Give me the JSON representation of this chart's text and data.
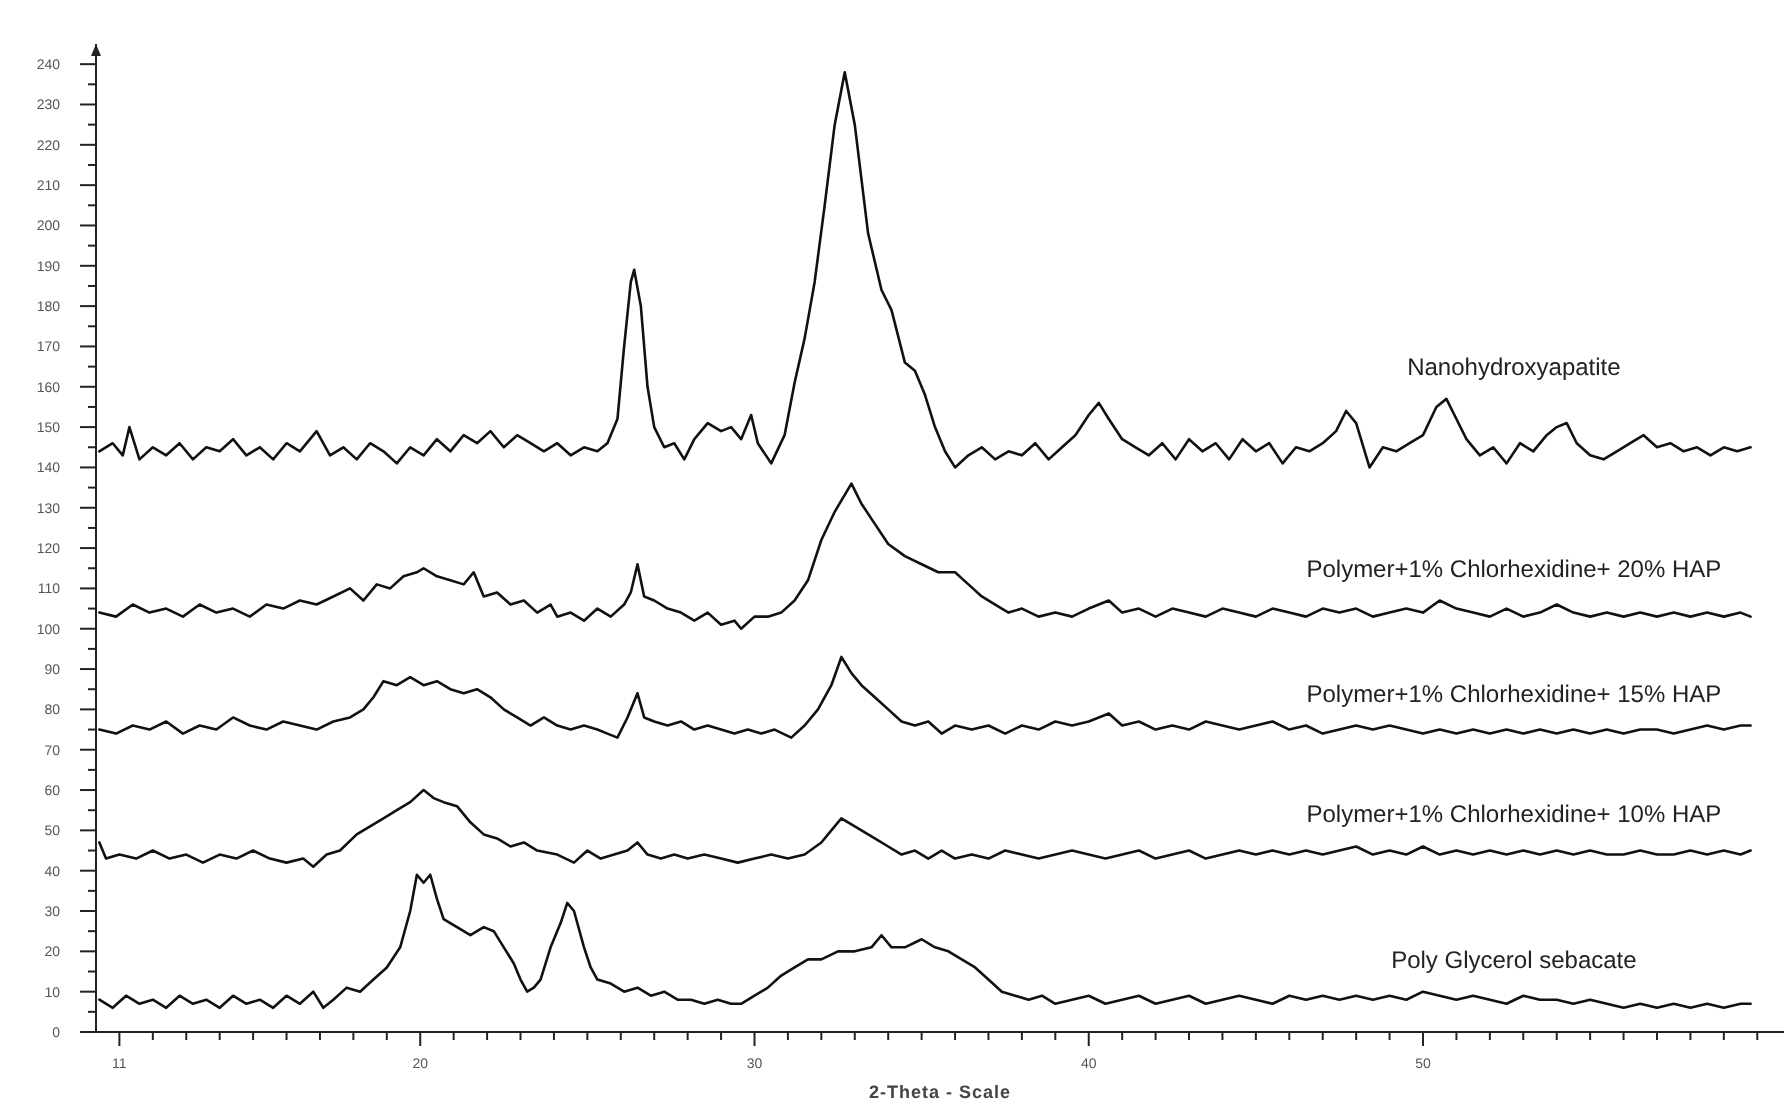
{
  "chart_data": {
    "type": "line",
    "xlabel": "2-Theta - Scale",
    "xlim": [
      10.3,
      60.8
    ],
    "ylim": [
      0,
      245
    ],
    "grid": false,
    "legend": false,
    "marker": "none",
    "line_style": "solid",
    "xticks": [
      11,
      {
        "value": 12,
        "label": null
      },
      {
        "value": 13,
        "label": null
      },
      {
        "value": 14,
        "label": null
      },
      {
        "value": 15,
        "label": null
      },
      {
        "value": 16,
        "label": null
      },
      {
        "value": 17,
        "label": null
      },
      {
        "value": 18,
        "label": null
      },
      {
        "value": 19,
        "label": null
      },
      20,
      {
        "value": 21,
        "label": null
      },
      {
        "value": 22,
        "label": null
      },
      {
        "value": 23,
        "label": null
      },
      {
        "value": 24,
        "label": null
      },
      {
        "value": 25,
        "label": null
      },
      {
        "value": 26,
        "label": null
      },
      {
        "value": 27,
        "label": null
      },
      {
        "value": 28,
        "label": null
      },
      {
        "value": 29,
        "label": null
      },
      30,
      {
        "value": 31,
        "label": null
      },
      {
        "value": 32,
        "label": null
      },
      {
        "value": 33,
        "label": null
      },
      {
        "value": 34,
        "label": null
      },
      {
        "value": 35,
        "label": null
      },
      {
        "value": 36,
        "label": null
      },
      {
        "value": 37,
        "label": null
      },
      {
        "value": 38,
        "label": null
      },
      {
        "value": 39,
        "label": null
      },
      40,
      {
        "value": 41,
        "label": null
      },
      {
        "value": 42,
        "label": null
      },
      {
        "value": 43,
        "label": null
      },
      {
        "value": 44,
        "label": null
      },
      {
        "value": 45,
        "label": null
      },
      {
        "value": 46,
        "label": null
      },
      {
        "value": 47,
        "label": null
      },
      {
        "value": 48,
        "label": null
      },
      {
        "value": 49,
        "label": null
      },
      50,
      {
        "value": 51,
        "label": null
      },
      {
        "value": 52,
        "label": null
      },
      {
        "value": 53,
        "label": null
      },
      {
        "value": 54,
        "label": null
      },
      {
        "value": 55,
        "label": null
      },
      {
        "value": 56,
        "label": null
      },
      {
        "value": 57,
        "label": null
      },
      {
        "value": 58,
        "label": null
      },
      {
        "value": 59,
        "label": null
      },
      {
        "value": 60,
        "label": null
      }
    ],
    "yticks": [
      0,
      {
        "value": 5,
        "label": null
      },
      10,
      {
        "value": 15,
        "label": null
      },
      20,
      {
        "value": 25,
        "label": null
      },
      30,
      {
        "value": 35,
        "label": null
      },
      40,
      {
        "value": 45,
        "label": null
      },
      50,
      {
        "value": 55,
        "label": null
      },
      60,
      {
        "value": 65,
        "label": null
      },
      70,
      {
        "value": 75,
        "label": null
      },
      80,
      {
        "value": 85,
        "label": null
      },
      90,
      {
        "value": 95,
        "label": null
      },
      100,
      {
        "value": 105,
        "label": null
      },
      110,
      {
        "value": 115,
        "label": null
      },
      120,
      {
        "value": 125,
        "label": null
      },
      130,
      {
        "value": 135,
        "label": null
      },
      140,
      {
        "value": 145,
        "label": null
      },
      150,
      {
        "value": 155,
        "label": null
      },
      160,
      {
        "value": 165,
        "label": null
      },
      170,
      {
        "value": 175,
        "label": null
      },
      180,
      {
        "value": 185,
        "label": null
      },
      190,
      {
        "value": 195,
        "label": null
      },
      200,
      {
        "value": 205,
        "label": null
      },
      210,
      {
        "value": 215,
        "label": null
      },
      220,
      {
        "value": 225,
        "label": null
      },
      230,
      {
        "value": 235,
        "label": null
      },
      240
    ],
    "series": [
      {
        "name": "Nanohydroxyapatite",
        "color": "#111111",
        "x": [
          10.4,
          10.8,
          11.1,
          11.3,
          11.6,
          12.0,
          12.4,
          12.8,
          13.2,
          13.6,
          14.0,
          14.4,
          14.8,
          15.2,
          15.6,
          16.0,
          16.4,
          16.9,
          17.3,
          17.7,
          18.1,
          18.5,
          18.9,
          19.3,
          19.7,
          20.1,
          20.5,
          20.9,
          21.3,
          21.7,
          22.1,
          22.5,
          22.9,
          23.3,
          23.7,
          24.1,
          24.5,
          24.9,
          25.3,
          25.6,
          25.9,
          26.1,
          26.3,
          26.4,
          26.6,
          26.8,
          27.0,
          27.3,
          27.6,
          27.9,
          28.2,
          28.6,
          29.0,
          29.3,
          29.6,
          29.9,
          30.1,
          30.5,
          30.9,
          31.2,
          31.5,
          31.8,
          32.1,
          32.4,
          32.7,
          33.0,
          33.4,
          33.8,
          34.1,
          34.5,
          34.8,
          35.1,
          35.4,
          35.7,
          36.0,
          36.4,
          36.8,
          37.2,
          37.6,
          38.0,
          38.4,
          38.8,
          39.2,
          39.6,
          40.0,
          40.3,
          40.6,
          41.0,
          41.4,
          41.8,
          42.2,
          42.6,
          43.0,
          43.4,
          43.8,
          44.2,
          44.6,
          45.0,
          45.4,
          45.8,
          46.2,
          46.6,
          47.0,
          47.4,
          47.7,
          48.0,
          48.4,
          48.8,
          49.2,
          49.6,
          50.0,
          50.4,
          50.7,
          51.0,
          51.3,
          51.7,
          52.1,
          52.5,
          52.9,
          53.3,
          53.7,
          54.0,
          54.3,
          54.6,
          55.0,
          55.4,
          55.8,
          56.2,
          56.6,
          57.0,
          57.4,
          57.8,
          58.2,
          58.6,
          59.0,
          59.4,
          59.8
        ],
        "values": [
          144,
          146,
          143,
          150,
          142,
          145,
          143,
          146,
          142,
          145,
          144,
          147,
          143,
          145,
          142,
          146,
          144,
          149,
          143,
          145,
          142,
          146,
          144,
          141,
          145,
          143,
          147,
          144,
          148,
          146,
          149,
          145,
          148,
          146,
          144,
          146,
          143,
          145,
          144,
          146,
          152,
          170,
          186,
          189,
          180,
          160,
          150,
          145,
          146,
          142,
          147,
          151,
          149,
          150,
          147,
          153,
          146,
          141,
          148,
          161,
          172,
          186,
          205,
          225,
          238,
          225,
          198,
          184,
          179,
          166,
          164,
          158,
          150,
          144,
          140,
          143,
          145,
          142,
          144,
          143,
          146,
          142,
          145,
          148,
          153,
          156,
          152,
          147,
          145,
          143,
          146,
          142,
          147,
          144,
          146,
          142,
          147,
          144,
          146,
          141,
          145,
          144,
          146,
          149,
          154,
          151,
          140,
          145,
          144,
          146,
          148,
          155,
          157,
          152,
          147,
          143,
          145,
          141,
          146,
          144,
          148,
          150,
          151,
          146,
          143,
          142,
          144,
          146,
          148,
          145,
          146,
          144,
          145,
          143,
          145,
          144,
          145
        ]
      },
      {
        "name": "Polymer+1% Chlorhexidine+ 20% HAP",
        "color": "#111111",
        "x": [
          10.4,
          10.9,
          11.4,
          11.9,
          12.4,
          12.9,
          13.4,
          13.9,
          14.4,
          14.9,
          15.4,
          15.9,
          16.4,
          16.9,
          17.4,
          17.9,
          18.3,
          18.7,
          19.1,
          19.5,
          19.9,
          20.1,
          20.5,
          20.9,
          21.3,
          21.6,
          21.9,
          22.3,
          22.7,
          23.1,
          23.5,
          23.9,
          24.1,
          24.5,
          24.9,
          25.3,
          25.7,
          26.1,
          26.3,
          26.5,
          26.7,
          27.0,
          27.4,
          27.8,
          28.2,
          28.6,
          29.0,
          29.4,
          29.6,
          30.0,
          30.4,
          30.8,
          31.2,
          31.6,
          32.0,
          32.4,
          32.9,
          33.2,
          33.6,
          34.0,
          34.5,
          35.0,
          35.5,
          36.0,
          36.4,
          36.8,
          37.2,
          37.6,
          38.0,
          38.5,
          39.0,
          39.5,
          40.0,
          40.6,
          41.0,
          41.5,
          42.0,
          42.5,
          43.0,
          43.5,
          44.0,
          44.5,
          45.0,
          45.5,
          46.0,
          46.5,
          47.0,
          47.5,
          48.0,
          48.5,
          49.0,
          49.5,
          50.0,
          50.5,
          51.0,
          51.5,
          52.0,
          52.5,
          53.0,
          53.5,
          54.0,
          54.5,
          55.0,
          55.5,
          56.0,
          56.5,
          57.0,
          57.5,
          58.0,
          58.5,
          59.0,
          59.5,
          59.8
        ],
        "values": [
          104,
          103,
          106,
          104,
          105,
          103,
          106,
          104,
          105,
          103,
          106,
          105,
          107,
          106,
          108,
          110,
          107,
          111,
          110,
          113,
          114,
          115,
          113,
          112,
          111,
          114,
          108,
          109,
          106,
          107,
          104,
          106,
          103,
          104,
          102,
          105,
          103,
          106,
          109,
          116,
          108,
          107,
          105,
          104,
          102,
          104,
          101,
          102,
          100,
          103,
          103,
          104,
          107,
          112,
          122,
          129,
          136,
          131,
          126,
          121,
          118,
          116,
          114,
          114,
          111,
          108,
          106,
          104,
          105,
          103,
          104,
          103,
          105,
          107,
          104,
          105,
          103,
          105,
          104,
          103,
          105,
          104,
          103,
          105,
          104,
          103,
          105,
          104,
          105,
          103,
          104,
          105,
          104,
          107,
          105,
          104,
          103,
          105,
          103,
          104,
          106,
          104,
          103,
          104,
          103,
          104,
          103,
          104,
          103,
          104,
          103,
          104,
          103
        ]
      },
      {
        "name": "Polymer+1% Chlorhexidine+ 15% HAP",
        "color": "#111111",
        "x": [
          10.4,
          10.9,
          11.4,
          11.9,
          12.4,
          12.9,
          13.4,
          13.9,
          14.4,
          14.9,
          15.4,
          15.9,
          16.4,
          16.9,
          17.4,
          17.9,
          18.3,
          18.6,
          18.9,
          19.3,
          19.7,
          20.1,
          20.5,
          20.9,
          21.3,
          21.7,
          22.1,
          22.5,
          22.9,
          23.3,
          23.7,
          24.1,
          24.5,
          24.9,
          25.3,
          25.6,
          25.9,
          26.2,
          26.5,
          26.7,
          27.0,
          27.4,
          27.8,
          28.2,
          28.6,
          29.0,
          29.4,
          29.8,
          30.2,
          30.6,
          31.1,
          31.5,
          31.9,
          32.3,
          32.6,
          32.9,
          33.2,
          33.6,
          34.0,
          34.4,
          34.8,
          35.2,
          35.6,
          36.0,
          36.5,
          37.0,
          37.5,
          38.0,
          38.5,
          39.0,
          39.5,
          40.0,
          40.6,
          41.0,
          41.5,
          42.0,
          42.5,
          43.0,
          43.5,
          44.0,
          44.5,
          45.0,
          45.5,
          46.0,
          46.5,
          47.0,
          47.5,
          48.0,
          48.5,
          49.0,
          49.5,
          50.0,
          50.5,
          51.0,
          51.5,
          52.0,
          52.5,
          53.0,
          53.5,
          54.0,
          54.5,
          55.0,
          55.5,
          56.0,
          56.5,
          57.0,
          57.5,
          58.0,
          58.5,
          59.0,
          59.5,
          59.8
        ],
        "values": [
          75,
          74,
          76,
          75,
          77,
          74,
          76,
          75,
          78,
          76,
          75,
          77,
          76,
          75,
          77,
          78,
          80,
          83,
          87,
          86,
          88,
          86,
          87,
          85,
          84,
          85,
          83,
          80,
          78,
          76,
          78,
          76,
          75,
          76,
          75,
          74,
          73,
          78,
          84,
          78,
          77,
          76,
          77,
          75,
          76,
          75,
          74,
          75,
          74,
          75,
          73,
          76,
          80,
          86,
          93,
          89,
          86,
          83,
          80,
          77,
          76,
          77,
          74,
          76,
          75,
          76,
          74,
          76,
          75,
          77,
          76,
          77,
          79,
          76,
          77,
          75,
          76,
          75,
          77,
          76,
          75,
          76,
          77,
          75,
          76,
          74,
          75,
          76,
          75,
          76,
          75,
          74,
          75,
          74,
          75,
          74,
          75,
          74,
          75,
          74,
          75,
          74,
          75,
          74,
          75,
          75,
          74,
          75,
          76,
          75,
          76,
          76
        ]
      },
      {
        "name": "Polymer+1% Chlorhexidine+ 10% HAP",
        "color": "#111111",
        "x": [
          10.4,
          10.6,
          11.0,
          11.5,
          12.0,
          12.5,
          13.0,
          13.5,
          14.0,
          14.5,
          15.0,
          15.5,
          16.0,
          16.5,
          16.8,
          17.2,
          17.6,
          18.1,
          18.5,
          18.9,
          19.3,
          19.7,
          20.1,
          20.4,
          20.7,
          21.1,
          21.5,
          21.9,
          22.3,
          22.7,
          23.1,
          23.5,
          24.1,
          24.6,
          25.0,
          25.4,
          25.8,
          26.2,
          26.5,
          26.8,
          27.2,
          27.6,
          28.0,
          28.5,
          29.0,
          29.5,
          30.0,
          30.5,
          31.0,
          31.5,
          32.0,
          32.3,
          32.6,
          33.0,
          33.6,
          34.0,
          34.4,
          34.8,
          35.2,
          35.6,
          36.0,
          36.5,
          37.0,
          37.5,
          38.0,
          38.5,
          39.0,
          39.5,
          40.0,
          40.5,
          41.0,
          41.5,
          42.0,
          42.5,
          43.0,
          43.5,
          44.0,
          44.5,
          45.0,
          45.5,
          46.0,
          46.5,
          47.0,
          47.5,
          48.0,
          48.5,
          49.0,
          49.5,
          50.0,
          50.5,
          51.0,
          51.5,
          52.0,
          52.5,
          53.0,
          53.5,
          54.0,
          54.5,
          55.0,
          55.5,
          56.0,
          56.5,
          57.0,
          57.5,
          58.0,
          58.5,
          59.0,
          59.5,
          59.8
        ],
        "values": [
          47,
          43,
          44,
          43,
          45,
          43,
          44,
          42,
          44,
          43,
          45,
          43,
          42,
          43,
          41,
          44,
          45,
          49,
          51,
          53,
          55,
          57,
          60,
          58,
          57,
          56,
          52,
          49,
          48,
          46,
          47,
          45,
          44,
          42,
          45,
          43,
          44,
          45,
          47,
          44,
          43,
          44,
          43,
          44,
          43,
          42,
          43,
          44,
          43,
          44,
          47,
          50,
          53,
          51,
          48,
          46,
          44,
          45,
          43,
          45,
          43,
          44,
          43,
          45,
          44,
          43,
          44,
          45,
          44,
          43,
          44,
          45,
          43,
          44,
          45,
          43,
          44,
          45,
          44,
          45,
          44,
          45,
          44,
          45,
          46,
          44,
          45,
          44,
          46,
          44,
          45,
          44,
          45,
          44,
          45,
          44,
          45,
          44,
          45,
          44,
          44,
          45,
          44,
          44,
          45,
          44,
          45,
          44,
          45
        ]
      },
      {
        "name": "Poly Glycerol sebacate",
        "color": "#111111",
        "x": [
          10.4,
          10.8,
          11.2,
          11.6,
          12.0,
          12.4,
          12.8,
          13.2,
          13.6,
          14.0,
          14.4,
          14.8,
          15.2,
          15.6,
          16.0,
          16.4,
          16.8,
          17.1,
          17.4,
          17.8,
          18.2,
          18.6,
          19.0,
          19.4,
          19.7,
          19.9,
          20.1,
          20.3,
          20.5,
          20.7,
          21.1,
          21.5,
          21.9,
          22.2,
          22.5,
          22.8,
          23.0,
          23.2,
          23.4,
          23.6,
          23.9,
          24.2,
          24.4,
          24.6,
          24.9,
          25.1,
          25.3,
          25.7,
          26.1,
          26.5,
          26.9,
          27.3,
          27.7,
          28.1,
          28.5,
          28.9,
          29.3,
          29.6,
          30.0,
          30.4,
          30.8,
          31.2,
          31.6,
          32.0,
          32.5,
          33.0,
          33.5,
          33.8,
          34.1,
          34.5,
          35.0,
          35.4,
          35.8,
          36.2,
          36.6,
          37.0,
          37.4,
          37.8,
          38.2,
          38.6,
          39.0,
          39.5,
          40.0,
          40.5,
          41.0,
          41.5,
          42.0,
          42.5,
          43.0,
          43.5,
          44.0,
          44.5,
          45.0,
          45.5,
          46.0,
          46.5,
          47.0,
          47.5,
          48.0,
          48.5,
          49.0,
          49.5,
          50.0,
          50.5,
          51.0,
          51.5,
          52.0,
          52.5,
          53.0,
          53.5,
          54.0,
          54.5,
          55.0,
          55.5,
          56.0,
          56.5,
          57.0,
          57.5,
          58.0,
          58.5,
          59.0,
          59.5,
          59.8
        ],
        "values": [
          8,
          6,
          9,
          7,
          8,
          6,
          9,
          7,
          8,
          6,
          9,
          7,
          8,
          6,
          9,
          7,
          10,
          6,
          8,
          11,
          10,
          13,
          16,
          21,
          30,
          39,
          37,
          39,
          33,
          28,
          26,
          24,
          26,
          25,
          21,
          17,
          13,
          10,
          11,
          13,
          21,
          27,
          32,
          30,
          21,
          16,
          13,
          12,
          10,
          11,
          9,
          10,
          8,
          8,
          7,
          8,
          7,
          7,
          9,
          11,
          14,
          16,
          18,
          18,
          20,
          20,
          21,
          24,
          21,
          21,
          23,
          21,
          20,
          18,
          16,
          13,
          10,
          9,
          8,
          9,
          7,
          8,
          9,
          7,
          8,
          9,
          7,
          8,
          9,
          7,
          8,
          9,
          8,
          7,
          9,
          8,
          9,
          8,
          9,
          8,
          9,
          8,
          10,
          9,
          8,
          9,
          8,
          7,
          9,
          8,
          8,
          7,
          8,
          7,
          6,
          7,
          6,
          7,
          6,
          7,
          6,
          7,
          7
        ]
      }
    ]
  }
}
